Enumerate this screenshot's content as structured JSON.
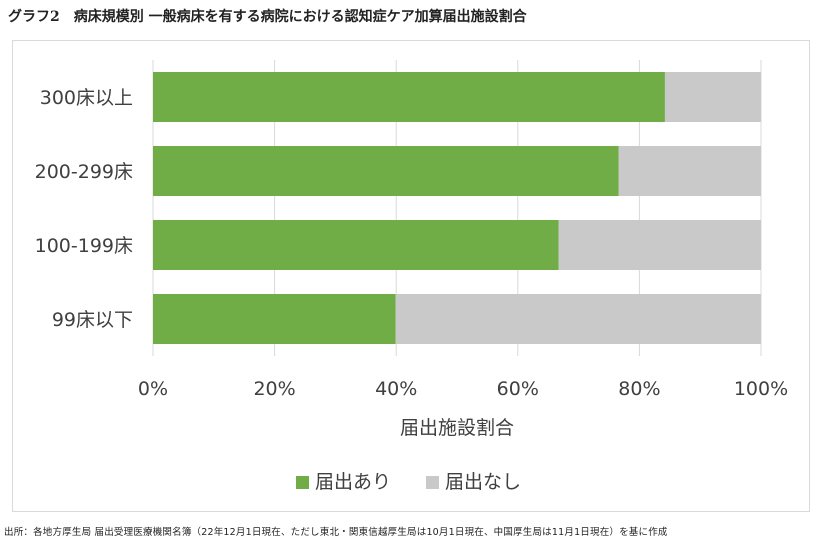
{
  "title": "グラフ2　病床規模別 一般病床を有する病院における認知症ケア加算届出施設割合",
  "source": "出所：各地方厚生局 届出受理医療機関名簿（22年12月1日現在、ただし東北・関東信越厚生局は10月1日現在、中国厚生局は11月1日現在）を基に作成",
  "chart_data": {
    "type": "bar",
    "orientation": "horizontal",
    "stacked": "percent",
    "categories": [
      "300床以上",
      "200-299床",
      "100-199床",
      "99床以下"
    ],
    "series": [
      {
        "name": "届出あり",
        "color": "#70ad47",
        "values": [
          84.2,
          76.6,
          66.7,
          39.9
        ]
      },
      {
        "name": "届出なし",
        "color": "#c9c9c9",
        "values": [
          15.8,
          23.4,
          33.3,
          60.1
        ]
      }
    ],
    "xlim": [
      0,
      100
    ],
    "xticks": [
      "0%",
      "20%",
      "40%",
      "60%",
      "80%",
      "100%"
    ],
    "xlabel": "届出施設割合",
    "grid": true,
    "legend_position": "bottom"
  }
}
